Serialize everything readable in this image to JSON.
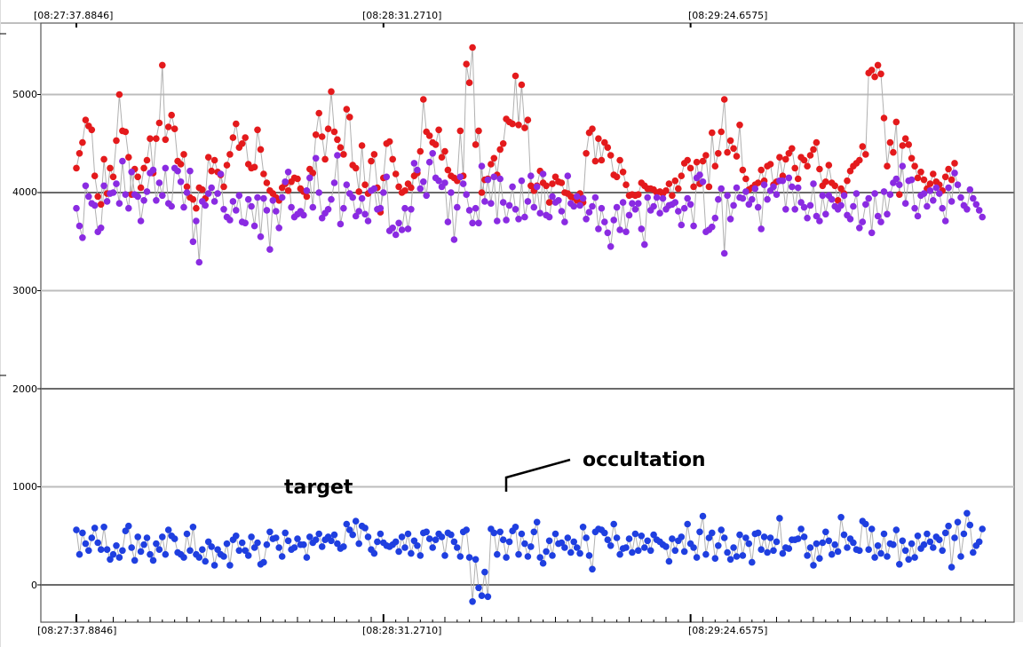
{
  "chart_data": {
    "type": "scatter",
    "title": "",
    "xlabel": "",
    "ylabel": "",
    "x_tick_labels": [
      "[08:27:37.8846]",
      "[08:28:31.2710]",
      "[08:29:24.6575]"
    ],
    "y_tick_labels": [
      "0",
      "1000",
      "2000",
      "3000",
      "4000",
      "5000"
    ],
    "ylim": [
      -250,
      5650
    ],
    "x_range_readings": [
      0,
      299
    ],
    "grid": true,
    "legend": "none",
    "annotations": [
      {
        "text": "target",
        "reading": 66,
        "y": 1000
      },
      {
        "text": "occultation",
        "reading": 155,
        "y": 1300
      }
    ],
    "series": [
      {
        "color": "#e41a1c",
        "marker": "circle",
        "line_color": "#b0b0b0",
        "values": [
          4250,
          4400,
          4510,
          4740,
          4680,
          4640,
          4170,
          3960,
          3880,
          4340,
          3990,
          4250,
          4160,
          4530,
          5000,
          4630,
          4620,
          4360,
          3980,
          4240,
          4160,
          4050,
          4250,
          4330,
          4550,
          4200,
          4550,
          4710,
          5300,
          4540,
          4670,
          4790,
          4650,
          4320,
          4290,
          4390,
          4060,
          3950,
          3930,
          3840,
          4050,
          4030,
          3940,
          4360,
          4220,
          4330,
          4210,
          4180,
          4060,
          4280,
          4390,
          4560,
          4700,
          4460,
          4500,
          4560,
          4290,
          4250,
          4260,
          4640,
          4440,
          4190,
          4100,
          4020,
          3990,
          3950,
          3920,
          4050,
          4090,
          4020,
          4110,
          4150,
          4140,
          4040,
          4010,
          3960,
          4240,
          4200,
          4590,
          4810,
          4570,
          4340,
          4650,
          5030,
          4620,
          4540,
          4460,
          4390,
          4850,
          4770,
          4280,
          4250,
          4010,
          4480,
          4080,
          3990,
          4320,
          4390,
          4050,
          3800,
          4150,
          4500,
          4520,
          4340,
          4190,
          4060,
          4000,
          4020,
          4090,
          4050,
          4170,
          4200,
          4420,
          4950,
          4620,
          4580,
          4510,
          4490,
          4640,
          4360,
          4420,
          4230,
          4170,
          4150,
          4120,
          4630,
          4170,
          5310,
          5120,
          5480,
          4490,
          4630,
          4000,
          4130,
          4140,
          4290,
          4350,
          4180,
          4440,
          4500,
          4750,
          4720,
          4700,
          5190,
          4690,
          5100,
          4660,
          4740,
          4070,
          4020,
          4070,
          4220,
          4100,
          4070,
          3900,
          4090,
          4160,
          4110,
          4100,
          4000,
          3990,
          3960,
          3950,
          3920,
          3990,
          3900,
          4400,
          4610,
          4650,
          4320,
          4550,
          4330,
          4510,
          4460,
          4380,
          4180,
          4160,
          4330,
          4210,
          4080,
          3970,
          3980,
          3970,
          3980,
          4100,
          4070,
          4040,
          4040,
          4030,
          4000,
          4010,
          3990,
          4020,
          4090,
          3970,
          4120,
          4040,
          4170,
          4300,
          4330,
          4250,
          4060,
          4310,
          4090,
          4320,
          4380,
          4060,
          4610,
          4270,
          4400,
          4620,
          4950,
          4410,
          4530,
          4450,
          4370,
          4690,
          4230,
          4140,
          4030,
          4050,
          4080,
          4100,
          4230,
          4120,
          4270,
          4290,
          4080,
          4110,
          4360,
          4170,
          4340,
          4400,
          4450,
          4250,
          4140,
          4360,
          4330,
          4270,
          4380,
          4440,
          4510,
          4240,
          4070,
          4110,
          4280,
          4100,
          4070,
          3920,
          4040,
          3990,
          4120,
          4220,
          4270,
          4300,
          4330,
          4470,
          4390,
          5220,
          5250,
          5180,
          5300,
          5210,
          4760,
          4270,
          4510,
          4410,
          4720,
          3980,
          4480,
          4550,
          4490,
          4350,
          4270,
          4150,
          4210,
          4130,
          4040,
          4090,
          4190,
          4110,
          4080,
          4020,
          4160,
          4240,
          4130,
          4300
        ]
      },
      {
        "color": "#8a2be2",
        "marker": "circle",
        "line_color": "#b0b0b0",
        "values": [
          3840,
          3660,
          3540,
          4070,
          3960,
          3890,
          3870,
          3600,
          3640,
          4070,
          3910,
          3990,
          4000,
          4090,
          3890,
          4320,
          3980,
          3840,
          4210,
          3980,
          3960,
          3710,
          3920,
          4010,
          4200,
          4230,
          3920,
          4100,
          3970,
          4250,
          3890,
          3860,
          4250,
          4220,
          4110,
          3850,
          4000,
          4220,
          3500,
          3710,
          3290,
          3910,
          3870,
          3990,
          4050,
          3910,
          3990,
          4190,
          3830,
          3750,
          3720,
          3910,
          3820,
          3970,
          3700,
          3690,
          3930,
          3860,
          3660,
          3950,
          3550,
          3940,
          3820,
          3420,
          3920,
          3810,
          3640,
          3950,
          4110,
          4210,
          3850,
          3750,
          3780,
          3810,
          3770,
          4020,
          4150,
          3850,
          4350,
          4000,
          3740,
          3790,
          3830,
          3930,
          4100,
          4380,
          3680,
          3840,
          4080,
          3990,
          3950,
          3760,
          3810,
          3940,
          3780,
          3710,
          4020,
          4040,
          3830,
          3840,
          4000,
          4160,
          3610,
          3640,
          3570,
          3690,
          3620,
          3840,
          3630,
          3830,
          4300,
          4230,
          4040,
          4110,
          3970,
          4310,
          4400,
          4150,
          4120,
          4060,
          4100,
          3700,
          4000,
          3520,
          3850,
          4160,
          4090,
          3980,
          3820,
          3690,
          3840,
          3690,
          4270,
          3910,
          4130,
          3890,
          4160,
          3710,
          4140,
          3900,
          3720,
          3870,
          4060,
          3830,
          3730,
          4120,
          3750,
          3910,
          4170,
          3850,
          4060,
          3790,
          4190,
          3770,
          3750,
          3960,
          3900,
          3920,
          3810,
          3700,
          4170,
          3890,
          3860,
          3960,
          3870,
          3940,
          3730,
          3800,
          3860,
          3950,
          3630,
          3840,
          3700,
          3590,
          3450,
          3720,
          3850,
          3620,
          3900,
          3600,
          3770,
          3890,
          3830,
          3890,
          3630,
          3470,
          3950,
          3820,
          3860,
          3950,
          3790,
          3940,
          3830,
          3870,
          3880,
          3900,
          3810,
          3670,
          3840,
          3940,
          3880,
          3660,
          4150,
          4180,
          4110,
          3600,
          3620,
          3650,
          3740,
          3930,
          4040,
          3380,
          3970,
          3730,
          3870,
          4050,
          3950,
          3940,
          4010,
          3880,
          3930,
          4040,
          3850,
          3630,
          4080,
          3930,
          4020,
          4060,
          3980,
          4120,
          4120,
          3830,
          4150,
          4060,
          3830,
          4050,
          3900,
          3850,
          3740,
          3870,
          4090,
          3760,
          3710,
          3970,
          3780,
          3970,
          3930,
          3860,
          3830,
          3870,
          3970,
          3770,
          3730,
          3860,
          3990,
          3640,
          3700,
          3880,
          3940,
          3590,
          3990,
          3760,
          3700,
          4010,
          3780,
          3980,
          4100,
          4140,
          4080,
          4270,
          3890,
          4120,
          4130,
          3840,
          3760,
          3970,
          3990,
          3860,
          4020,
          3920,
          4050,
          3990,
          3840,
          3710,
          4050,
          3910,
          4200,
          4080,
          3950,
          3870,
          3830,
          4030,
          3940,
          3880,
          3820,
          3750
        ]
      },
      {
        "color": "#1f3fe0",
        "marker": "circle",
        "line_color": "#b0b0b0",
        "values": [
          560,
          310,
          530,
          420,
          350,
          480,
          580,
          430,
          360,
          590,
          360,
          260,
          310,
          400,
          280,
          350,
          550,
          600,
          380,
          250,
          490,
          340,
          410,
          480,
          310,
          250,
          420,
          360,
          490,
          310,
          560,
          500,
          470,
          330,
          310,
          280,
          520,
          350,
          590,
          310,
          280,
          360,
          240,
          440,
          390,
          200,
          360,
          310,
          290,
          420,
          200,
          460,
          500,
          350,
          430,
          350,
          300,
          490,
          380,
          430,
          210,
          230,
          410,
          540,
          470,
          480,
          380,
          290,
          530,
          450,
          360,
          380,
          470,
          410,
          410,
          280,
          490,
          430,
          460,
          520,
          390,
          460,
          490,
          450,
          510,
          420,
          370,
          390,
          620,
          560,
          510,
          650,
          420,
          600,
          580,
          490,
          360,
          320,
          440,
          520,
          430,
          400,
          390,
          410,
          440,
          340,
          490,
          380,
          520,
          320,
          450,
          400,
          300,
          530,
          540,
          470,
          380,
          460,
          520,
          490,
          300,
          530,
          510,
          440,
          380,
          290,
          540,
          560,
          280,
          -170,
          260,
          -30,
          -110,
          130,
          -120,
          570,
          530,
          310,
          540,
          460,
          280,
          440,
          550,
          590,
          310,
          520,
          420,
          290,
          390,
          540,
          640,
          280,
          220,
          340,
          450,
          300,
          520,
          420,
          430,
          380,
          480,
          330,
          440,
          380,
          320,
          590,
          480,
          300,
          160,
          540,
          570,
          560,
          530,
          460,
          400,
          620,
          480,
          310,
          370,
          380,
          470,
          330,
          520,
          350,
          500,
          380,
          450,
          350,
          510,
          460,
          440,
          410,
          390,
          240,
          470,
          350,
          450,
          490,
          340,
          620,
          420,
          380,
          280,
          540,
          700,
          310,
          480,
          530,
          270,
          400,
          560,
          480,
          330,
          260,
          380,
          290,
          510,
          300,
          480,
          420,
          230,
          520,
          530,
          360,
          490,
          330,
          480,
          350,
          440,
          680,
          320,
          380,
          370,
          460,
          460,
          470,
          570,
          490,
          300,
          380,
          200,
          420,
          270,
          430,
          540,
          450,
          310,
          410,
          340,
          690,
          510,
          380,
          470,
          430,
          360,
          350,
          650,
          620,
          360,
          570,
          280,
          400,
          320,
          520,
          290,
          420,
          410,
          560,
          210,
          450,
          350,
          260,
          420,
          280,
          500,
          370,
          410,
          520,
          440,
          380,
          490,
          460,
          350,
          530,
          600,
          180,
          480,
          640,
          290,
          520,
          730,
          610,
          330,
          400,
          440,
          570
        ]
      }
    ]
  }
}
